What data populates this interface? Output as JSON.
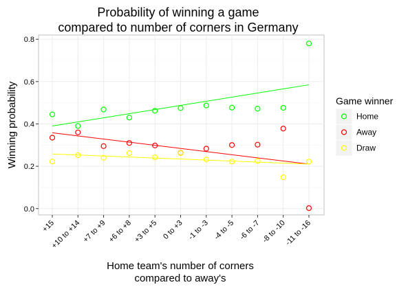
{
  "chart_data": {
    "type": "scatter",
    "title": [
      "Probability of winning a game",
      "compared to number of corners in Germany"
    ],
    "xlabel": [
      "Home team's number of corners",
      "compared to away's"
    ],
    "ylabel": "Winning probability",
    "categories": [
      "+15",
      "+10 to +14",
      "+7 to +9",
      "+6 to +8",
      "+3 to +5",
      "0 to +3",
      "-1 to -3",
      "-4 to -5",
      "-6 to -7",
      "-8 to -10",
      "-11 to -16"
    ],
    "yticks": [
      "0.0",
      "0.2",
      "0.4",
      "0.6",
      "0.8"
    ],
    "ylim": [
      -0.03,
      0.82
    ],
    "grid": true,
    "legend": {
      "title": "Game winner",
      "position": "right",
      "entries": [
        "Home",
        "Away",
        "Draw"
      ]
    },
    "series": [
      {
        "name": "Home",
        "color": "#00ff00",
        "values": [
          0.445,
          0.39,
          0.468,
          0.43,
          0.462,
          0.475,
          0.487,
          0.477,
          0.472,
          0.476,
          0.78
        ],
        "trend": [
          0.39,
          0.585
        ]
      },
      {
        "name": "Away",
        "color": "#ff0000",
        "values": [
          0.335,
          0.36,
          0.295,
          0.31,
          0.298,
          0.263,
          0.283,
          0.3,
          0.302,
          0.378,
          0.002
        ],
        "trend": [
          0.358,
          0.21
        ]
      },
      {
        "name": "Draw",
        "color": "#ffff00",
        "values": [
          0.222,
          0.252,
          0.24,
          0.262,
          0.242,
          0.262,
          0.232,
          0.222,
          0.225,
          0.148,
          0.222
        ],
        "trend": [
          0.258,
          0.21
        ]
      }
    ]
  }
}
